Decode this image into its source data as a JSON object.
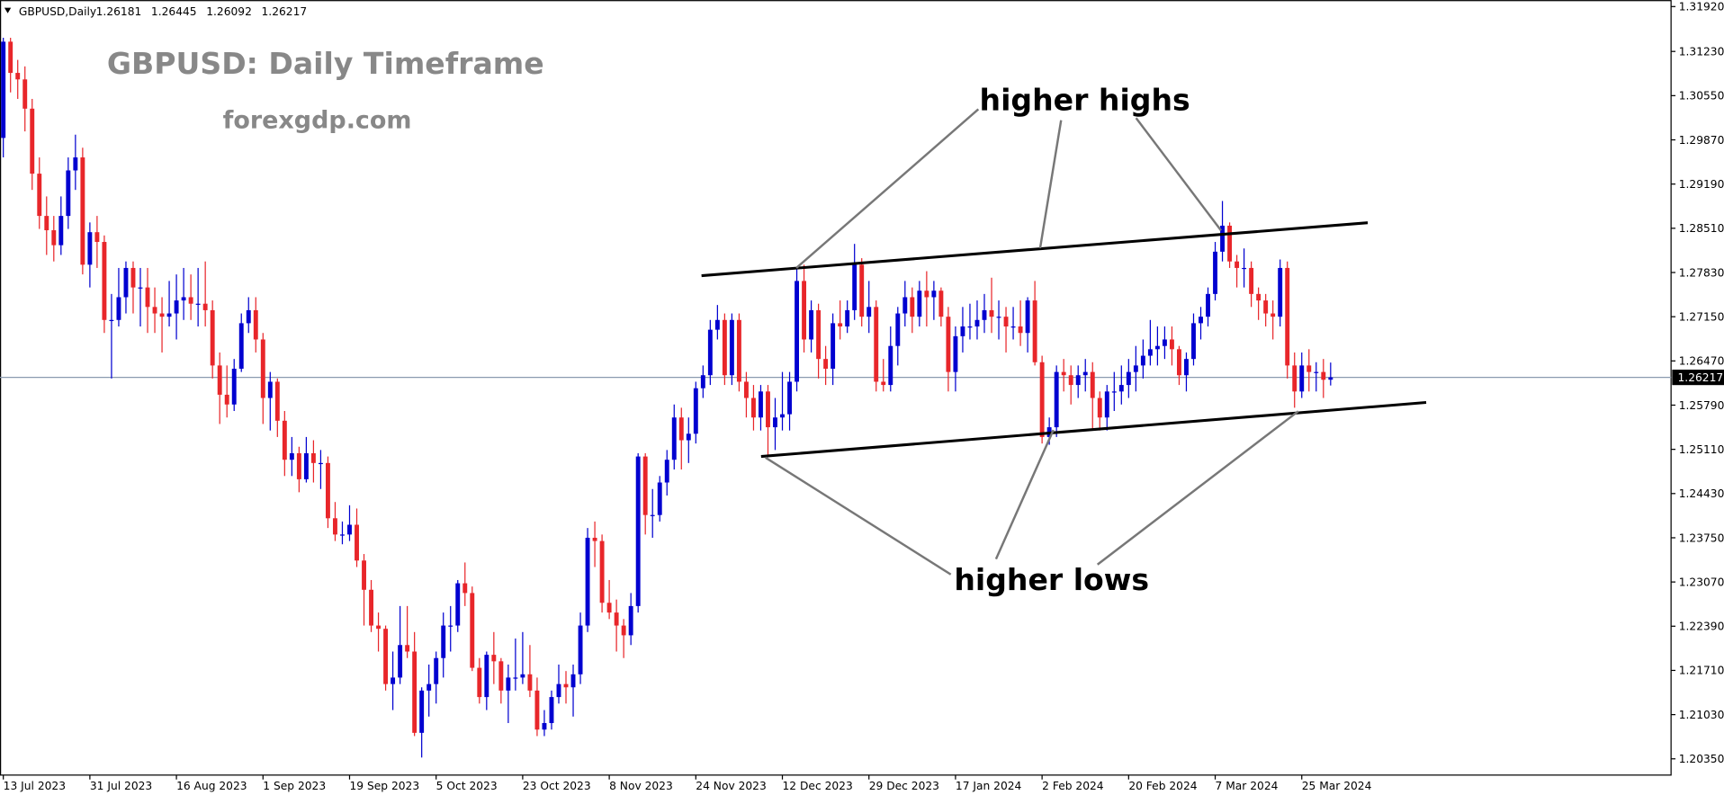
{
  "chart_data": {
    "type": "candlestick",
    "symbol": "GBPUSD,Daily",
    "header_ohlc": [
      1.26181,
      1.26445,
      1.26092,
      1.26217
    ],
    "title": "GBPUSD: Daily Timeframe",
    "subtitle": "forexgdp.com",
    "annotations": [
      "higher highs",
      "higher lows"
    ],
    "up_color": "#0000d0",
    "down_color": "#e8262a",
    "price_line": 1.26217,
    "price_line_color": "#8a9bb0",
    "ylim": [
      1.201,
      1.3202
    ],
    "yticks": [
      {
        "value": 1.3192,
        "label": "1.31920"
      },
      {
        "value": 1.3123,
        "label": "1.31230"
      },
      {
        "value": 1.3055,
        "label": "1.30550"
      },
      {
        "value": 1.2987,
        "label": "1.29870"
      },
      {
        "value": 1.2919,
        "label": "1.29190"
      },
      {
        "value": 1.2851,
        "label": "1.28510"
      },
      {
        "value": 1.2783,
        "label": "1.27830"
      },
      {
        "value": 1.2715,
        "label": "1.27150"
      },
      {
        "value": 1.2647,
        "label": "1.26470"
      },
      {
        "value": 1.2579,
        "label": "1.25790"
      },
      {
        "value": 1.2511,
        "label": "1.25110"
      },
      {
        "value": 1.2443,
        "label": "1.24430"
      },
      {
        "value": 1.2375,
        "label": "1.23750"
      },
      {
        "value": 1.2307,
        "label": "1.23070"
      },
      {
        "value": 1.2239,
        "label": "1.22390"
      },
      {
        "value": 1.2171,
        "label": "1.21710"
      },
      {
        "value": 1.2103,
        "label": "1.21030"
      },
      {
        "value": 1.2035,
        "label": "1.20350"
      }
    ],
    "categories": [
      "13 Jul 2023",
      null,
      null,
      null,
      null,
      null,
      null,
      null,
      null,
      null,
      null,
      null,
      "31 Jul 2023",
      null,
      null,
      null,
      null,
      null,
      null,
      null,
      null,
      null,
      null,
      null,
      "16 Aug 2023",
      null,
      null,
      null,
      null,
      null,
      null,
      null,
      null,
      null,
      null,
      null,
      "1 Sep 2023",
      null,
      null,
      null,
      null,
      null,
      null,
      null,
      null,
      null,
      null,
      null,
      "19 Sep 2023",
      null,
      null,
      null,
      null,
      null,
      null,
      null,
      null,
      null,
      null,
      null,
      "5 Oct 2023",
      null,
      null,
      null,
      null,
      null,
      null,
      null,
      null,
      null,
      null,
      null,
      "23 Oct 2023",
      null,
      null,
      null,
      null,
      null,
      null,
      null,
      null,
      null,
      null,
      null,
      "8 Nov 2023",
      null,
      null,
      null,
      null,
      null,
      null,
      null,
      null,
      null,
      null,
      null,
      "24 Nov 2023",
      null,
      null,
      null,
      null,
      null,
      null,
      null,
      null,
      null,
      null,
      null,
      "12 Dec 2023",
      null,
      null,
      null,
      null,
      null,
      null,
      null,
      null,
      null,
      null,
      null,
      "29 Dec 2023",
      null,
      null,
      null,
      null,
      null,
      null,
      null,
      null,
      null,
      null,
      null,
      "17 Jan 2024",
      null,
      null,
      null,
      null,
      null,
      null,
      null,
      null,
      null,
      null,
      null,
      "2 Feb 2024",
      null,
      null,
      null,
      null,
      null,
      null,
      null,
      null,
      null,
      null,
      null,
      "20 Feb 2024",
      null,
      null,
      null,
      null,
      null,
      null,
      null,
      null,
      null,
      null,
      null,
      "7 Mar 2024",
      null,
      null,
      null,
      null,
      null,
      null,
      null,
      null,
      null,
      null,
      null,
      "25 Mar 2024",
      null,
      null,
      null,
      null
    ],
    "ohlc": [
      [
        1.299,
        1.3144,
        1.296,
        1.3138
      ],
      [
        1.3138,
        1.3144,
        1.306,
        1.309
      ],
      [
        1.309,
        1.311,
        1.305,
        1.308
      ],
      [
        1.308,
        1.31,
        1.3,
        1.3035
      ],
      [
        1.3035,
        1.305,
        1.291,
        1.2935
      ],
      [
        1.2935,
        1.296,
        1.285,
        1.287
      ],
      [
        1.287,
        1.29,
        1.281,
        1.2848
      ],
      [
        1.2848,
        1.287,
        1.28,
        1.2825
      ],
      [
        1.2825,
        1.29,
        1.281,
        1.287
      ],
      [
        1.287,
        1.296,
        1.285,
        1.294
      ],
      [
        1.294,
        1.2995,
        1.291,
        1.296
      ],
      [
        1.296,
        1.2975,
        1.278,
        1.2795
      ],
      [
        1.2795,
        1.286,
        1.276,
        1.2845
      ],
      [
        1.2845,
        1.287,
        1.279,
        1.283
      ],
      [
        1.283,
        1.284,
        1.269,
        1.271
      ],
      [
        1.271,
        1.275,
        1.262,
        1.271
      ],
      [
        1.271,
        1.279,
        1.27,
        1.2745
      ],
      [
        1.2745,
        1.28,
        1.272,
        1.279
      ],
      [
        1.279,
        1.28,
        1.272,
        1.276
      ],
      [
        1.276,
        1.279,
        1.27,
        1.276
      ],
      [
        1.276,
        1.279,
        1.269,
        1.273
      ],
      [
        1.273,
        1.276,
        1.269,
        1.272
      ],
      [
        1.272,
        1.2745,
        1.266,
        1.2715
      ],
      [
        1.2715,
        1.277,
        1.27,
        1.272
      ],
      [
        1.272,
        1.278,
        1.268,
        1.274
      ],
      [
        1.274,
        1.279,
        1.271,
        1.2745
      ],
      [
        1.2745,
        1.278,
        1.271,
        1.2735
      ],
      [
        1.2735,
        1.279,
        1.27,
        1.2735
      ],
      [
        1.2735,
        1.28,
        1.27,
        1.2725
      ],
      [
        1.2725,
        1.274,
        1.262,
        1.264
      ],
      [
        1.264,
        1.266,
        1.255,
        1.2595
      ],
      [
        1.2595,
        1.264,
        1.256,
        1.258
      ],
      [
        1.258,
        1.265,
        1.257,
        1.2635
      ],
      [
        1.2635,
        1.272,
        1.263,
        1.2705
      ],
      [
        1.2705,
        1.2745,
        1.269,
        1.2725
      ],
      [
        1.2725,
        1.2745,
        1.266,
        1.268
      ],
      [
        1.268,
        1.269,
        1.255,
        1.259
      ],
      [
        1.259,
        1.263,
        1.254,
        1.2615
      ],
      [
        1.2615,
        1.262,
        1.253,
        1.2555
      ],
      [
        1.2555,
        1.257,
        1.247,
        1.2495
      ],
      [
        1.2495,
        1.253,
        1.247,
        1.2505
      ],
      [
        1.2505,
        1.2515,
        1.2445,
        1.2465
      ],
      [
        1.2465,
        1.253,
        1.246,
        1.2505
      ],
      [
        1.2505,
        1.2525,
        1.246,
        1.249
      ],
      [
        1.249,
        1.251,
        1.245,
        1.249
      ],
      [
        1.249,
        1.25,
        1.239,
        1.2405
      ],
      [
        1.2405,
        1.243,
        1.237,
        1.238
      ],
      [
        1.238,
        1.24,
        1.2365,
        1.238
      ],
      [
        1.238,
        1.2425,
        1.237,
        1.2395
      ],
      [
        1.2395,
        1.242,
        1.233,
        1.234
      ],
      [
        1.234,
        1.235,
        1.224,
        1.2295
      ],
      [
        1.2295,
        1.231,
        1.223,
        1.224
      ],
      [
        1.224,
        1.226,
        1.22,
        1.2235
      ],
      [
        1.2235,
        1.224,
        1.214,
        1.215
      ],
      [
        1.215,
        1.22,
        1.211,
        1.216
      ],
      [
        1.216,
        1.227,
        1.215,
        1.221
      ],
      [
        1.221,
        1.227,
        1.219,
        1.22
      ],
      [
        1.22,
        1.223,
        1.207,
        1.2075
      ],
      [
        1.2075,
        1.2145,
        1.2037,
        1.214
      ],
      [
        1.214,
        1.218,
        1.21,
        1.215
      ],
      [
        1.215,
        1.22,
        1.212,
        1.219
      ],
      [
        1.219,
        1.226,
        1.216,
        1.224
      ],
      [
        1.224,
        1.227,
        1.22,
        1.224
      ],
      [
        1.224,
        1.231,
        1.223,
        1.2305
      ],
      [
        1.2305,
        1.2337,
        1.227,
        1.229
      ],
      [
        1.229,
        1.23,
        1.217,
        1.2175
      ],
      [
        1.2175,
        1.219,
        1.212,
        1.213
      ],
      [
        1.213,
        1.22,
        1.211,
        1.2195
      ],
      [
        1.2195,
        1.223,
        1.215,
        1.2185
      ],
      [
        1.2185,
        1.219,
        1.212,
        1.214
      ],
      [
        1.214,
        1.218,
        1.209,
        1.216
      ],
      [
        1.216,
        1.222,
        1.214,
        1.216
      ],
      [
        1.216,
        1.223,
        1.215,
        1.2165
      ],
      [
        1.2165,
        1.221,
        1.213,
        1.214
      ],
      [
        1.214,
        1.216,
        1.207,
        1.208
      ],
      [
        1.208,
        1.211,
        1.207,
        1.209
      ],
      [
        1.209,
        1.214,
        1.208,
        1.213
      ],
      [
        1.213,
        1.218,
        1.212,
        1.215
      ],
      [
        1.215,
        1.217,
        1.212,
        1.2145
      ],
      [
        1.2145,
        1.218,
        1.21,
        1.2165
      ],
      [
        1.2165,
        1.226,
        1.215,
        1.224
      ],
      [
        1.224,
        1.239,
        1.223,
        1.2375
      ],
      [
        1.2375,
        1.24,
        1.233,
        1.237
      ],
      [
        1.237,
        1.238,
        1.226,
        1.2275
      ],
      [
        1.2275,
        1.231,
        1.225,
        1.226
      ],
      [
        1.226,
        1.228,
        1.22,
        1.224
      ],
      [
        1.224,
        1.225,
        1.219,
        1.2225
      ],
      [
        1.2225,
        1.229,
        1.221,
        1.227
      ],
      [
        1.227,
        1.2505,
        1.226,
        1.25
      ],
      [
        1.25,
        1.2505,
        1.238,
        1.241
      ],
      [
        1.241,
        1.245,
        1.2375,
        1.241
      ],
      [
        1.241,
        1.247,
        1.24,
        1.246
      ],
      [
        1.246,
        1.251,
        1.244,
        1.2495
      ],
      [
        1.2495,
        1.258,
        1.248,
        1.256
      ],
      [
        1.256,
        1.2575,
        1.248,
        1.2525
      ],
      [
        1.2525,
        1.256,
        1.249,
        1.2535
      ],
      [
        1.2535,
        1.2615,
        1.252,
        1.2605
      ],
      [
        1.2605,
        1.264,
        1.259,
        1.2625
      ],
      [
        1.2625,
        1.271,
        1.261,
        1.2695
      ],
      [
        1.2695,
        1.2733,
        1.268,
        1.271
      ],
      [
        1.271,
        1.272,
        1.261,
        1.2625
      ],
      [
        1.2625,
        1.272,
        1.261,
        1.271
      ],
      [
        1.271,
        1.272,
        1.26,
        1.2615
      ],
      [
        1.2615,
        1.263,
        1.256,
        1.259
      ],
      [
        1.259,
        1.261,
        1.254,
        1.256
      ],
      [
        1.256,
        1.261,
        1.254,
        1.26
      ],
      [
        1.26,
        1.261,
        1.25,
        1.2545
      ],
      [
        1.2545,
        1.259,
        1.251,
        1.256
      ],
      [
        1.256,
        1.263,
        1.254,
        1.2565
      ],
      [
        1.2565,
        1.263,
        1.254,
        1.2615
      ],
      [
        1.2615,
        1.279,
        1.26,
        1.277
      ],
      [
        1.277,
        1.2795,
        1.266,
        1.268
      ],
      [
        1.268,
        1.274,
        1.266,
        1.2725
      ],
      [
        1.2725,
        1.2735,
        1.262,
        1.265
      ],
      [
        1.265,
        1.267,
        1.261,
        1.2635
      ],
      [
        1.2635,
        1.272,
        1.261,
        1.2705
      ],
      [
        1.2705,
        1.274,
        1.268,
        1.27
      ],
      [
        1.27,
        1.274,
        1.269,
        1.2725
      ],
      [
        1.2725,
        1.2827,
        1.271,
        1.2795
      ],
      [
        1.2795,
        1.2805,
        1.27,
        1.2715
      ],
      [
        1.2715,
        1.277,
        1.269,
        1.273
      ],
      [
        1.273,
        1.274,
        1.26,
        1.2615
      ],
      [
        1.2615,
        1.265,
        1.26,
        1.261
      ],
      [
        1.261,
        1.27,
        1.26,
        1.267
      ],
      [
        1.267,
        1.273,
        1.264,
        1.272
      ],
      [
        1.272,
        1.277,
        1.27,
        1.2745
      ],
      [
        1.2745,
        1.276,
        1.269,
        1.2715
      ],
      [
        1.2715,
        1.277,
        1.27,
        1.2755
      ],
      [
        1.2755,
        1.2785,
        1.27,
        1.2745
      ],
      [
        1.2745,
        1.277,
        1.271,
        1.2755
      ],
      [
        1.2755,
        1.276,
        1.27,
        1.2715
      ],
      [
        1.2715,
        1.273,
        1.26,
        1.263
      ],
      [
        1.263,
        1.27,
        1.26,
        1.2685
      ],
      [
        1.2685,
        1.273,
        1.266,
        1.27
      ],
      [
        1.27,
        1.2735,
        1.268,
        1.27
      ],
      [
        1.27,
        1.274,
        1.268,
        1.271
      ],
      [
        1.271,
        1.275,
        1.269,
        1.2725
      ],
      [
        1.2725,
        1.2775,
        1.269,
        1.2715
      ],
      [
        1.2715,
        1.274,
        1.268,
        1.2715
      ],
      [
        1.2715,
        1.273,
        1.266,
        1.27
      ],
      [
        1.27,
        1.273,
        1.268,
        1.27
      ],
      [
        1.27,
        1.274,
        1.267,
        1.269
      ],
      [
        1.269,
        1.2745,
        1.266,
        1.274
      ],
      [
        1.274,
        1.277,
        1.264,
        1.2645
      ],
      [
        1.2645,
        1.2655,
        1.252,
        1.253
      ],
      [
        1.253,
        1.256,
        1.2518,
        1.2545
      ],
      [
        1.2545,
        1.264,
        1.253,
        1.263
      ],
      [
        1.263,
        1.265,
        1.26,
        1.2625
      ],
      [
        1.2625,
        1.264,
        1.258,
        1.261
      ],
      [
        1.261,
        1.264,
        1.259,
        1.2625
      ],
      [
        1.2625,
        1.265,
        1.26,
        1.263
      ],
      [
        1.263,
        1.2645,
        1.254,
        1.259
      ],
      [
        1.259,
        1.26,
        1.254,
        1.256
      ],
      [
        1.256,
        1.261,
        1.254,
        1.26
      ],
      [
        1.26,
        1.263,
        1.257,
        1.26
      ],
      [
        1.26,
        1.264,
        1.258,
        1.261
      ],
      [
        1.261,
        1.265,
        1.259,
        1.263
      ],
      [
        1.263,
        1.267,
        1.26,
        1.264
      ],
      [
        1.264,
        1.268,
        1.262,
        1.2655
      ],
      [
        1.2655,
        1.271,
        1.264,
        1.2665
      ],
      [
        1.2665,
        1.27,
        1.264,
        1.267
      ],
      [
        1.267,
        1.27,
        1.265,
        1.268
      ],
      [
        1.268,
        1.27,
        1.264,
        1.2665
      ],
      [
        1.2665,
        1.267,
        1.261,
        1.2625
      ],
      [
        1.2625,
        1.266,
        1.26,
        1.265
      ],
      [
        1.265,
        1.272,
        1.264,
        1.2705
      ],
      [
        1.2705,
        1.273,
        1.268,
        1.2715
      ],
      [
        1.2715,
        1.276,
        1.27,
        1.275
      ],
      [
        1.275,
        1.283,
        1.274,
        1.2815
      ],
      [
        1.2815,
        1.2893,
        1.28,
        1.2855
      ],
      [
        1.2855,
        1.286,
        1.279,
        1.28
      ],
      [
        1.28,
        1.281,
        1.276,
        1.279
      ],
      [
        1.279,
        1.282,
        1.276,
        1.279
      ],
      [
        1.279,
        1.28,
        1.273,
        1.275
      ],
      [
        1.275,
        1.276,
        1.271,
        1.274
      ],
      [
        1.274,
        1.275,
        1.27,
        1.272
      ],
      [
        1.272,
        1.274,
        1.268,
        1.2715
      ],
      [
        1.2715,
        1.2803,
        1.27,
        1.279
      ],
      [
        1.279,
        1.28,
        1.262,
        1.264
      ],
      [
        1.264,
        1.266,
        1.2575,
        1.26
      ],
      [
        1.26,
        1.266,
        1.259,
        1.264
      ],
      [
        1.264,
        1.2665,
        1.26,
        1.263
      ],
      [
        1.263,
        1.2645,
        1.26,
        1.263
      ],
      [
        1.263,
        1.265,
        1.259,
        1.2618
      ],
      [
        1.26181,
        1.26445,
        1.26092,
        1.26217
      ]
    ]
  }
}
